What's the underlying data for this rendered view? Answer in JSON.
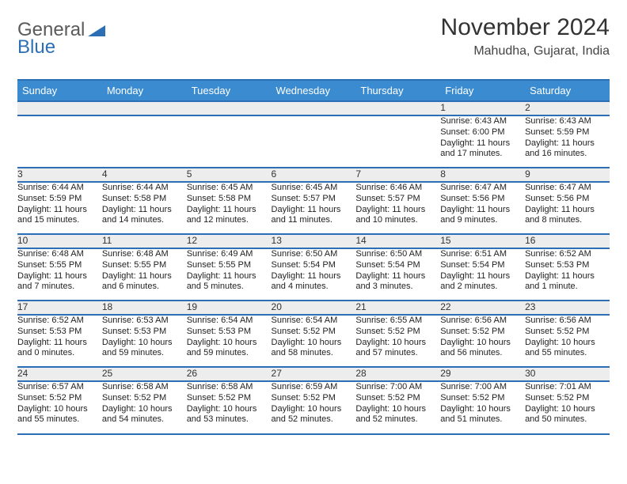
{
  "logo": {
    "part1": "General",
    "part2": "Blue",
    "tri_color": "#2d6fb5"
  },
  "header": {
    "month_year": "November 2024",
    "location": "Mahudha, Gujarat, India"
  },
  "colors": {
    "header_bg": "#3a8bd0",
    "rule": "#2d6fb5",
    "daynum_bg": "#ededed",
    "text": "#222222"
  },
  "day_names": [
    "Sunday",
    "Monday",
    "Tuesday",
    "Wednesday",
    "Thursday",
    "Friday",
    "Saturday"
  ],
  "weeks": [
    [
      null,
      null,
      null,
      null,
      null,
      {
        "n": "1",
        "sunrise": "6:43 AM",
        "sunset": "6:00 PM",
        "daylight": "11 hours and 17 minutes."
      },
      {
        "n": "2",
        "sunrise": "6:43 AM",
        "sunset": "5:59 PM",
        "daylight": "11 hours and 16 minutes."
      }
    ],
    [
      {
        "n": "3",
        "sunrise": "6:44 AM",
        "sunset": "5:59 PM",
        "daylight": "11 hours and 15 minutes."
      },
      {
        "n": "4",
        "sunrise": "6:44 AM",
        "sunset": "5:58 PM",
        "daylight": "11 hours and 14 minutes."
      },
      {
        "n": "5",
        "sunrise": "6:45 AM",
        "sunset": "5:58 PM",
        "daylight": "11 hours and 12 minutes."
      },
      {
        "n": "6",
        "sunrise": "6:45 AM",
        "sunset": "5:57 PM",
        "daylight": "11 hours and 11 minutes."
      },
      {
        "n": "7",
        "sunrise": "6:46 AM",
        "sunset": "5:57 PM",
        "daylight": "11 hours and 10 minutes."
      },
      {
        "n": "8",
        "sunrise": "6:47 AM",
        "sunset": "5:56 PM",
        "daylight": "11 hours and 9 minutes."
      },
      {
        "n": "9",
        "sunrise": "6:47 AM",
        "sunset": "5:56 PM",
        "daylight": "11 hours and 8 minutes."
      }
    ],
    [
      {
        "n": "10",
        "sunrise": "6:48 AM",
        "sunset": "5:55 PM",
        "daylight": "11 hours and 7 minutes."
      },
      {
        "n": "11",
        "sunrise": "6:48 AM",
        "sunset": "5:55 PM",
        "daylight": "11 hours and 6 minutes."
      },
      {
        "n": "12",
        "sunrise": "6:49 AM",
        "sunset": "5:55 PM",
        "daylight": "11 hours and 5 minutes."
      },
      {
        "n": "13",
        "sunrise": "6:50 AM",
        "sunset": "5:54 PM",
        "daylight": "11 hours and 4 minutes."
      },
      {
        "n": "14",
        "sunrise": "6:50 AM",
        "sunset": "5:54 PM",
        "daylight": "11 hours and 3 minutes."
      },
      {
        "n": "15",
        "sunrise": "6:51 AM",
        "sunset": "5:54 PM",
        "daylight": "11 hours and 2 minutes."
      },
      {
        "n": "16",
        "sunrise": "6:52 AM",
        "sunset": "5:53 PM",
        "daylight": "11 hours and 1 minute."
      }
    ],
    [
      {
        "n": "17",
        "sunrise": "6:52 AM",
        "sunset": "5:53 PM",
        "daylight": "11 hours and 0 minutes."
      },
      {
        "n": "18",
        "sunrise": "6:53 AM",
        "sunset": "5:53 PM",
        "daylight": "10 hours and 59 minutes."
      },
      {
        "n": "19",
        "sunrise": "6:54 AM",
        "sunset": "5:53 PM",
        "daylight": "10 hours and 59 minutes."
      },
      {
        "n": "20",
        "sunrise": "6:54 AM",
        "sunset": "5:52 PM",
        "daylight": "10 hours and 58 minutes."
      },
      {
        "n": "21",
        "sunrise": "6:55 AM",
        "sunset": "5:52 PM",
        "daylight": "10 hours and 57 minutes."
      },
      {
        "n": "22",
        "sunrise": "6:56 AM",
        "sunset": "5:52 PM",
        "daylight": "10 hours and 56 minutes."
      },
      {
        "n": "23",
        "sunrise": "6:56 AM",
        "sunset": "5:52 PM",
        "daylight": "10 hours and 55 minutes."
      }
    ],
    [
      {
        "n": "24",
        "sunrise": "6:57 AM",
        "sunset": "5:52 PM",
        "daylight": "10 hours and 55 minutes."
      },
      {
        "n": "25",
        "sunrise": "6:58 AM",
        "sunset": "5:52 PM",
        "daylight": "10 hours and 54 minutes."
      },
      {
        "n": "26",
        "sunrise": "6:58 AM",
        "sunset": "5:52 PM",
        "daylight": "10 hours and 53 minutes."
      },
      {
        "n": "27",
        "sunrise": "6:59 AM",
        "sunset": "5:52 PM",
        "daylight": "10 hours and 52 minutes."
      },
      {
        "n": "28",
        "sunrise": "7:00 AM",
        "sunset": "5:52 PM",
        "daylight": "10 hours and 52 minutes."
      },
      {
        "n": "29",
        "sunrise": "7:00 AM",
        "sunset": "5:52 PM",
        "daylight": "10 hours and 51 minutes."
      },
      {
        "n": "30",
        "sunrise": "7:01 AM",
        "sunset": "5:52 PM",
        "daylight": "10 hours and 50 minutes."
      }
    ]
  ],
  "labels": {
    "sunrise": "Sunrise: ",
    "sunset": "Sunset: ",
    "daylight": "Daylight: "
  }
}
